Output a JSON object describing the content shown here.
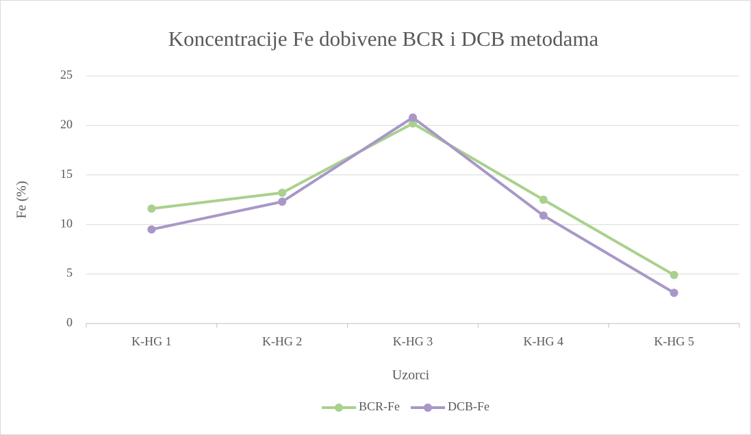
{
  "chart_data": {
    "type": "line",
    "title": "Koncentracije Fe dobivene BCR i DCB metodama",
    "x_label": "Uzorci",
    "y_label": "Fe (%)",
    "categories": [
      "K-HG 1",
      "K-HG 2",
      "K-HG 3",
      "K-HG 4",
      "K-HG 5"
    ],
    "series": [
      {
        "name": "BCR-Fe",
        "color": "#a9d18e",
        "values": [
          11.6,
          13.2,
          20.2,
          12.5,
          4.9
        ]
      },
      {
        "name": "DCB-Fe",
        "color": "#a897c7",
        "values": [
          9.5,
          12.3,
          20.8,
          10.9,
          3.1
        ]
      }
    ],
    "ylim": [
      0,
      25
    ],
    "yticks": [
      0,
      5,
      10,
      15,
      20,
      25
    ],
    "grid": true,
    "legend": "bottom"
  }
}
